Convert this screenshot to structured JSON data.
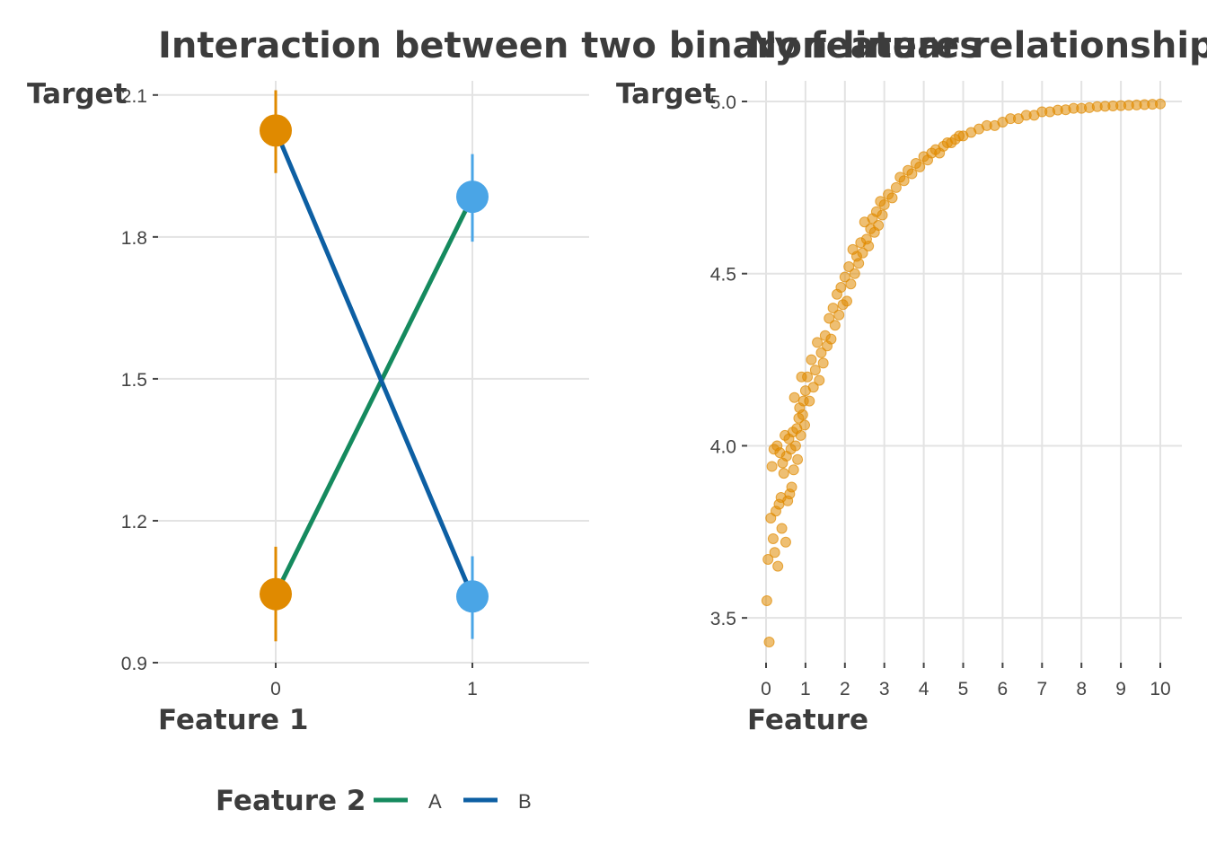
{
  "chart_data": [
    {
      "type": "line",
      "title": "Interaction between two binary features",
      "xlabel": "Feature 1",
      "ylabel": "Target",
      "categories": [
        "0",
        "1"
      ],
      "ylim": [
        0.9,
        2.13
      ],
      "yticks": [
        "0.9",
        "1.2",
        "1.5",
        "1.8",
        "2.1"
      ],
      "legend": {
        "title": "Feature 2",
        "position": "bottom",
        "entries": [
          {
            "name": "A",
            "color": "#158a5e"
          },
          {
            "name": "B",
            "color": "#0d5fa3"
          }
        ]
      },
      "series": [
        {
          "name": "A",
          "color": "#158a5e",
          "values": [
            1.045,
            1.885
          ]
        },
        {
          "name": "B",
          "color": "#0d5fa3",
          "values": [
            2.025,
            1.04
          ]
        }
      ],
      "points": [
        {
          "x": "0",
          "y": 2.025,
          "ymin": 1.935,
          "ymax": 2.11,
          "color": "#e08a00"
        },
        {
          "x": "0",
          "y": 1.045,
          "ymin": 0.945,
          "ymax": 1.145,
          "color": "#e08a00"
        },
        {
          "x": "1",
          "y": 1.885,
          "ymin": 1.79,
          "ymax": 1.975,
          "color": "#4aa5e6"
        },
        {
          "x": "1",
          "y": 1.04,
          "ymin": 0.95,
          "ymax": 1.125,
          "color": "#4aa5e6"
        }
      ],
      "grid": true
    },
    {
      "type": "scatter",
      "title": "Non-linear relationship between",
      "xlabel": "Feature",
      "ylabel": "Target",
      "xlim": [
        -0.3,
        10.5
      ],
      "ylim": [
        3.37,
        5.06
      ],
      "xticks": [
        "0",
        "1",
        "2",
        "3",
        "4",
        "5",
        "6",
        "7",
        "8",
        "9",
        "10"
      ],
      "yticks": [
        "3.5",
        "4.0",
        "4.5",
        "5.0"
      ],
      "color": "#e08a00",
      "trend": "y = 5 - 1.5 * exp(-x / 2) (estimated shape)",
      "x": [
        0.02,
        0.05,
        0.08,
        0.12,
        0.15,
        0.18,
        0.2,
        0.22,
        0.25,
        0.28,
        0.3,
        0.33,
        0.35,
        0.38,
        0.4,
        0.42,
        0.45,
        0.48,
        0.5,
        0.52,
        0.55,
        0.58,
        0.6,
        0.63,
        0.65,
        0.68,
        0.7,
        0.72,
        0.75,
        0.78,
        0.8,
        0.83,
        0.85,
        0.88,
        0.9,
        0.93,
        0.95,
        0.98,
        1.0,
        1.05,
        1.1,
        1.15,
        1.2,
        1.25,
        1.3,
        1.35,
        1.4,
        1.45,
        1.5,
        1.55,
        1.6,
        1.65,
        1.7,
        1.75,
        1.8,
        1.85,
        1.9,
        1.95,
        2.0,
        2.05,
        2.1,
        2.15,
        2.2,
        2.25,
        2.3,
        2.35,
        2.4,
        2.45,
        2.5,
        2.55,
        2.6,
        2.65,
        2.7,
        2.75,
        2.8,
        2.85,
        2.9,
        2.95,
        3.0,
        3.1,
        3.2,
        3.3,
        3.4,
        3.5,
        3.6,
        3.7,
        3.8,
        3.9,
        4.0,
        4.1,
        4.2,
        4.3,
        4.4,
        4.5,
        4.6,
        4.7,
        4.8,
        4.9,
        5.0,
        5.2,
        5.4,
        5.6,
        5.8,
        6.0,
        6.2,
        6.4,
        6.6,
        6.8,
        7.0,
        7.2,
        7.4,
        7.6,
        7.8,
        8.0,
        8.2,
        8.4,
        8.6,
        8.8,
        9.0,
        9.2,
        9.4,
        9.6,
        9.8,
        10.0
      ],
      "y": [
        3.55,
        3.67,
        3.43,
        3.79,
        3.94,
        3.73,
        3.99,
        3.69,
        3.81,
        4.0,
        3.65,
        3.83,
        3.98,
        3.85,
        3.76,
        3.95,
        3.92,
        4.03,
        3.72,
        3.97,
        3.84,
        4.02,
        3.86,
        3.99,
        3.88,
        4.04,
        3.93,
        4.14,
        4.0,
        4.05,
        3.96,
        4.08,
        4.11,
        4.03,
        4.2,
        4.09,
        4.13,
        4.06,
        4.16,
        4.2,
        4.13,
        4.25,
        4.17,
        4.22,
        4.3,
        4.19,
        4.27,
        4.24,
        4.32,
        4.29,
        4.37,
        4.31,
        4.4,
        4.35,
        4.44,
        4.38,
        4.46,
        4.41,
        4.49,
        4.42,
        4.52,
        4.47,
        4.57,
        4.5,
        4.55,
        4.53,
        4.59,
        4.56,
        4.65,
        4.6,
        4.58,
        4.63,
        4.66,
        4.62,
        4.68,
        4.64,
        4.71,
        4.67,
        4.7,
        4.73,
        4.72,
        4.75,
        4.78,
        4.77,
        4.8,
        4.79,
        4.82,
        4.81,
        4.84,
        4.83,
        4.85,
        4.86,
        4.85,
        4.87,
        4.88,
        4.88,
        4.89,
        4.9,
        4.9,
        4.91,
        4.92,
        4.93,
        4.93,
        4.94,
        4.95,
        4.95,
        4.96,
        4.96,
        4.97,
        4.97,
        4.975,
        4.976,
        4.98,
        4.98,
        4.982,
        4.985,
        4.986,
        4.987,
        4.988,
        4.989,
        4.99,
        4.991,
        4.992,
        4.993
      ],
      "grid": true
    }
  ]
}
